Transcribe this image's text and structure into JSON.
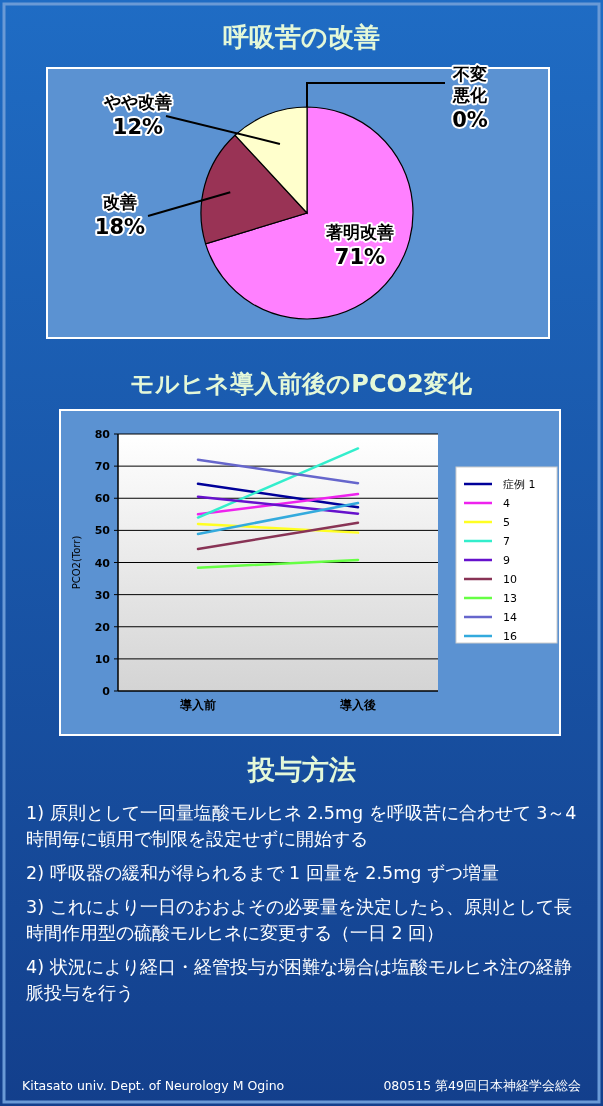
{
  "chart_data": [
    {
      "type": "pie",
      "title": "呼吸苦の改善",
      "categories": [
        "著明改善",
        "改善",
        "やや改善",
        "不変悪化"
      ],
      "values": [
        71,
        18,
        12,
        0
      ],
      "colors": [
        "#ff80ff",
        "#993355",
        "#ffffcc",
        null
      ],
      "value_labels": [
        "71%",
        "18%",
        "12%",
        "0%"
      ]
    },
    {
      "type": "line",
      "title": "モルヒネ導入前後のPCO2変化",
      "categories": [
        "導入前",
        "導入後"
      ],
      "ylabel": "PCO2(Torr)",
      "ylim": [
        0,
        80
      ],
      "yticks": [
        0,
        10,
        20,
        30,
        40,
        50,
        60,
        70,
        80
      ],
      "grid": "y",
      "legend": "right",
      "series": [
        {
          "name": "症例 1",
          "color": "#000099",
          "values": [
            64.5,
            57.2
          ]
        },
        {
          "name": "4",
          "color": "#ee22ee",
          "values": [
            55,
            61.3
          ]
        },
        {
          "name": "5",
          "color": "#ffff22",
          "values": [
            52,
            49.3
          ]
        },
        {
          "name": "7",
          "color": "#33eecc",
          "values": [
            54,
            75.5
          ]
        },
        {
          "name": "9",
          "color": "#6611cc",
          "values": [
            60.5,
            55.2
          ]
        },
        {
          "name": "10",
          "color": "#883355",
          "values": [
            44.2,
            52.4
          ]
        },
        {
          "name": "13",
          "color": "#66ff44",
          "values": [
            38.4,
            40.8
          ]
        },
        {
          "name": "14",
          "color": "#6666cc",
          "values": [
            72,
            64.7
          ]
        },
        {
          "name": "16",
          "color": "#33aadd",
          "values": [
            48.9,
            58.5
          ]
        }
      ]
    },
    {
      "type": "other",
      "title": "投与方法",
      "annotations": [
        "1) 原則として一回量塩酸モルヒネ 2.5mg を呼吸苦に合わせて 3～4 時間毎に頓用で制限を設定せずに開始する",
        "2) 呼吸器の緩和が得られるまで 1 回量を 2.5mg ずつ増量",
        "3) これにより一日のおおよその必要量を決定したら、原則として長時間作用型の硫酸モルヒネに変更する（一日 2 回）",
        "4) 状況により経口・経管投与が困難な場合は塩酸モルヒネ注の経静脈投与を行う",
        "Kitasato univ. Dept. of Neurology M Ogino",
        "080515 第49回日本神経学会総会"
      ]
    }
  ]
}
